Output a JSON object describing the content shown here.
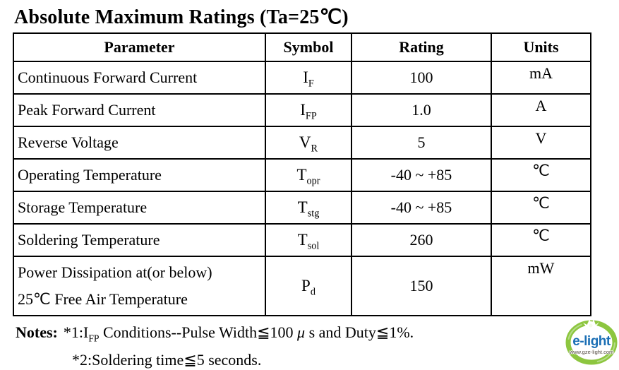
{
  "title": "Absolute Maximum Ratings (Ta=25℃)",
  "table": {
    "headers": [
      "Parameter",
      "Symbol",
      "Rating",
      "Units"
    ],
    "rows": [
      {
        "parameter_lines": [
          "Continuous Forward Current"
        ],
        "symbol_base": "I",
        "symbol_sub": "F",
        "rating": "100",
        "units": "mA"
      },
      {
        "parameter_lines": [
          "Peak Forward Current"
        ],
        "symbol_base": "I",
        "symbol_sub": "FP",
        "rating": "1.0",
        "units": "A"
      },
      {
        "parameter_lines": [
          "Reverse Voltage"
        ],
        "symbol_base": "V",
        "symbol_sub": "R",
        "rating": "5",
        "units": "V"
      },
      {
        "parameter_lines": [
          "Operating Temperature"
        ],
        "symbol_base": "T",
        "symbol_sub": "opr",
        "rating": "-40 ~ +85",
        "units": "℃"
      },
      {
        "parameter_lines": [
          "Storage Temperature"
        ],
        "symbol_base": "T",
        "symbol_sub": "stg",
        "rating": "-40 ~ +85",
        "units": "℃"
      },
      {
        "parameter_lines": [
          "Soldering Temperature"
        ],
        "symbol_base": "T",
        "symbol_sub": "sol",
        "rating": "260",
        "units": "℃"
      },
      {
        "parameter_lines": [
          "Power Dissipation at(or below)",
          "25℃ Free Air Temperature"
        ],
        "symbol_base": "P",
        "symbol_sub": "d",
        "rating": "150",
        "units": "mW"
      }
    ]
  },
  "notes": {
    "label": "Notes:",
    "note1_prefix": "*1:I",
    "note1_sub": "FP",
    "note1_mid": " Conditions--Pulse Width≦100 ",
    "note1_mu": "μ",
    "note1_rest": " s and Duty≦1%.",
    "note2": "*2:Soldering time≦5 seconds."
  },
  "logo": {
    "name": "e-light",
    "url": "www.gze-light.com",
    "text_color": "#1b6fb5",
    "ring_color": "#8dc63f"
  }
}
